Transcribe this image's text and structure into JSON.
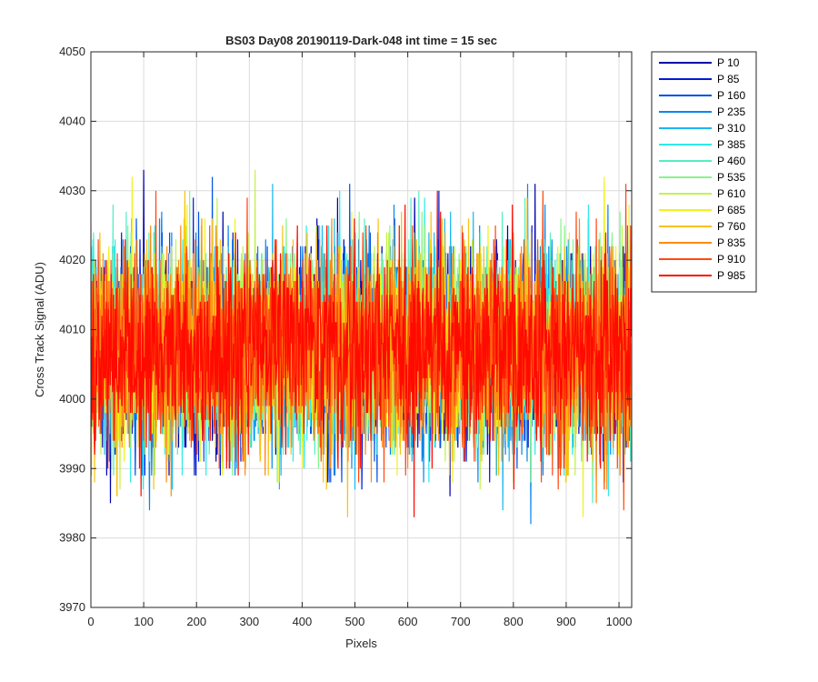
{
  "chart_data": {
    "type": "line",
    "title": "BS03 Day08 20190119-Dark-048 int time = 15 sec",
    "xlabel": "Pixels",
    "ylabel": "Cross Track Signal (ADU)",
    "xlim": [
      0,
      1024
    ],
    "ylim": [
      3970,
      4050
    ],
    "xticks": [
      0,
      100,
      200,
      300,
      400,
      500,
      600,
      700,
      800,
      900,
      1000
    ],
    "yticks": [
      3970,
      3980,
      3990,
      4000,
      4010,
      4020,
      4030,
      4040,
      4050
    ],
    "grid": true,
    "legend_position": "outside-top-right",
    "n_pixels": 1024,
    "series": [
      {
        "name": "P 10",
        "color": "#0000AA",
        "mean": 4007,
        "spread": 7
      },
      {
        "name": "P 85",
        "color": "#0019D6",
        "mean": 4007,
        "spread": 7
      },
      {
        "name": "P 160",
        "color": "#0052E6",
        "mean": 4007,
        "spread": 7
      },
      {
        "name": "P 235",
        "color": "#0A86EE",
        "mean": 4007,
        "spread": 7
      },
      {
        "name": "P 310",
        "color": "#1AB7F0",
        "mean": 4007,
        "spread": 7
      },
      {
        "name": "P 385",
        "color": "#2EEAEA",
        "mean": 4007,
        "spread": 7
      },
      {
        "name": "P 460",
        "color": "#56EEC2",
        "mean": 4007,
        "spread": 7
      },
      {
        "name": "P 535",
        "color": "#86F58C",
        "mean": 4007,
        "spread": 7
      },
      {
        "name": "P 610",
        "color": "#C2F34B",
        "mean": 4007,
        "spread": 7
      },
      {
        "name": "P 685",
        "color": "#F2F21A",
        "mean": 4007,
        "spread": 7
      },
      {
        "name": "P 760",
        "color": "#F8C214",
        "mean": 4007,
        "spread": 7
      },
      {
        "name": "P 835",
        "color": "#FF8A12",
        "mean": 4007,
        "spread": 7
      },
      {
        "name": "P 910",
        "color": "#FF4A10",
        "mean": 4007,
        "spread": 7
      },
      {
        "name": "P 985",
        "color": "#FF0A00",
        "mean": 4007,
        "spread": 7
      }
    ]
  }
}
